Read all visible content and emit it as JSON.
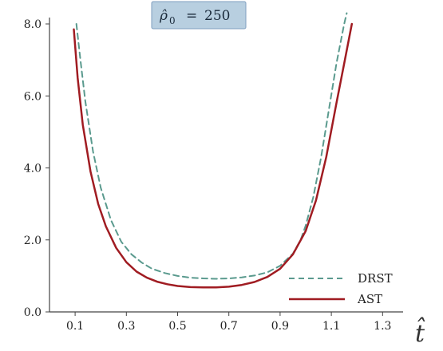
{
  "chart_data": {
    "type": "line",
    "title": "",
    "xlabel": "t̂",
    "ylabel": "",
    "xlim": [
      0.0,
      1.38
    ],
    "ylim": [
      0.0,
      8.0
    ],
    "x_ticks": [
      "0.1",
      "0.3",
      "0.5",
      "0.7",
      "0.9",
      "1.1",
      "1.3"
    ],
    "y_ticks": [
      "0.0",
      "2.0",
      "4.0",
      "6.0",
      "8.0"
    ],
    "annotation": {
      "symbol": "ρ̂",
      "subscript": "0",
      "relation": "=",
      "value": "250",
      "background": "#b8cfe0",
      "border": "#7f9fbf"
    },
    "legend": {
      "placement": "bottom-right",
      "entries": [
        "DRST",
        "AST"
      ]
    },
    "series": [
      {
        "name": "DRST",
        "color": "#5a9a8e",
        "style": "dashed",
        "x": [
          0.105,
          0.12,
          0.14,
          0.17,
          0.2,
          0.24,
          0.28,
          0.32,
          0.36,
          0.4,
          0.45,
          0.5,
          0.55,
          0.6,
          0.65,
          0.7,
          0.75,
          0.8,
          0.85,
          0.9,
          0.95,
          0.98,
          1.0,
          1.03,
          1.06,
          1.09,
          1.12,
          1.15,
          1.16
        ],
        "y": [
          8.0,
          7.05,
          5.85,
          4.45,
          3.45,
          2.55,
          1.95,
          1.6,
          1.37,
          1.2,
          1.08,
          1.0,
          0.95,
          0.93,
          0.92,
          0.93,
          0.96,
          1.01,
          1.1,
          1.28,
          1.62,
          2.0,
          2.4,
          3.2,
          4.3,
          5.6,
          6.9,
          8.0,
          8.3
        ]
      },
      {
        "name": "AST",
        "color": "#a01c22",
        "style": "solid",
        "x": [
          0.095,
          0.11,
          0.13,
          0.16,
          0.19,
          0.22,
          0.26,
          0.3,
          0.34,
          0.38,
          0.42,
          0.46,
          0.5,
          0.55,
          0.6,
          0.65,
          0.7,
          0.75,
          0.8,
          0.85,
          0.9,
          0.95,
          1.0,
          1.04,
          1.08,
          1.12,
          1.15,
          1.18
        ],
        "y": [
          7.85,
          6.5,
          5.2,
          3.9,
          3.0,
          2.38,
          1.78,
          1.38,
          1.12,
          0.95,
          0.84,
          0.77,
          0.72,
          0.69,
          0.68,
          0.68,
          0.7,
          0.75,
          0.83,
          0.97,
          1.2,
          1.6,
          2.25,
          3.1,
          4.3,
          5.8,
          6.9,
          8.0
        ]
      }
    ]
  }
}
